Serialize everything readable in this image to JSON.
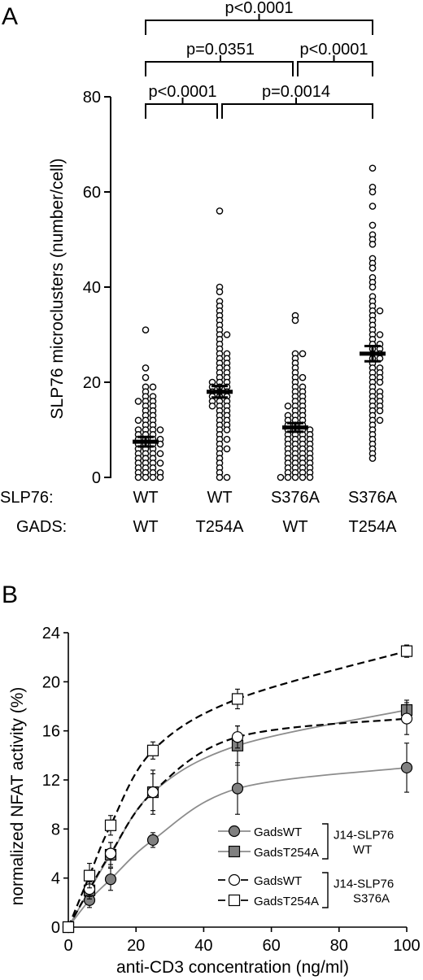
{
  "chart_data": [
    {
      "panel": "A",
      "type": "scatter",
      "ylabel": "SLP76 microclusters (number/cell)",
      "ylim": [
        0,
        80
      ],
      "yticks": [
        0,
        20,
        40,
        60,
        80
      ],
      "row_labels": [
        "SLP76:",
        "GADS:"
      ],
      "groups": [
        {
          "slp76": "WT",
          "gads": "WT",
          "mean": 7.5,
          "sem": 1.0,
          "values": [
            31,
            23,
            21,
            19,
            19,
            18,
            17,
            17,
            16,
            16,
            16,
            15,
            15,
            14,
            14,
            13,
            13,
            12,
            12,
            12,
            11,
            11,
            10,
            10,
            10,
            10,
            9,
            9,
            9,
            8,
            8,
            8,
            8,
            7,
            7,
            7,
            7,
            6,
            6,
            6,
            5,
            5,
            5,
            5,
            4,
            4,
            4,
            3,
            3,
            3,
            3,
            2,
            2,
            2,
            1,
            1,
            1,
            1,
            0,
            0,
            0,
            0
          ]
        },
        {
          "slp76": "WT",
          "gads": "T254A",
          "mean": 18,
          "sem": 1.2,
          "values": [
            56,
            40,
            39,
            37,
            36,
            35,
            34,
            33,
            32,
            31,
            30,
            30,
            29,
            28,
            27,
            26,
            26,
            25,
            25,
            24,
            24,
            23,
            23,
            22,
            22,
            21,
            21,
            20,
            20,
            20,
            19,
            19,
            19,
            18,
            18,
            18,
            17,
            17,
            17,
            16,
            16,
            16,
            15,
            15,
            15,
            14,
            14,
            13,
            13,
            12,
            12,
            11,
            11,
            10,
            10,
            9,
            8,
            8,
            7,
            6,
            6,
            5,
            4,
            3,
            2,
            1,
            0,
            0
          ]
        },
        {
          "slp76": "S376A",
          "gads": "WT",
          "mean": 10.5,
          "sem": 0.9,
          "values": [
            34,
            33,
            26,
            26,
            25,
            24,
            23,
            22,
            21,
            21,
            20,
            19,
            19,
            18,
            18,
            17,
            17,
            16,
            16,
            15,
            15,
            15,
            14,
            14,
            13,
            13,
            13,
            12,
            12,
            12,
            11,
            11,
            11,
            10,
            10,
            10,
            10,
            9,
            9,
            9,
            9,
            8,
            8,
            8,
            8,
            7,
            7,
            7,
            7,
            6,
            6,
            6,
            6,
            5,
            5,
            5,
            5,
            4,
            4,
            4,
            4,
            3,
            3,
            3,
            3,
            2,
            2,
            2,
            2,
            1,
            1,
            1,
            1,
            0,
            0,
            0,
            0,
            0
          ]
        },
        {
          "slp76": "S376A",
          "gads": "T254A",
          "mean": 26,
          "sem": 1.6,
          "values": [
            65,
            61,
            60,
            57,
            53,
            51,
            50,
            49,
            46,
            45,
            44,
            42,
            41,
            40,
            38,
            37,
            36,
            35,
            35,
            34,
            33,
            32,
            31,
            30,
            30,
            29,
            28,
            28,
            27,
            27,
            26,
            26,
            25,
            25,
            24,
            23,
            23,
            22,
            22,
            21,
            21,
            20,
            20,
            19,
            18,
            18,
            17,
            17,
            16,
            16,
            15,
            15,
            14,
            14,
            13,
            12,
            12,
            11,
            10,
            9,
            8,
            7,
            6,
            5,
            4
          ]
        }
      ],
      "comparisons": [
        {
          "a": 0,
          "b": 3,
          "label": "p<0.0001"
        },
        {
          "a": 0,
          "b": 2,
          "label": "p=0.0351"
        },
        {
          "a": 2,
          "b": 3,
          "label": "p<0.0001"
        },
        {
          "a": 0,
          "b": 1,
          "label": "p<0.0001"
        },
        {
          "a": 1,
          "b": 3,
          "label": "p=0.0014"
        }
      ]
    },
    {
      "panel": "B",
      "type": "line",
      "xlabel": "anti-CD3 concentration (ng/ml)",
      "ylabel": "normalized NFAT activity (%)",
      "xlim": [
        0,
        100
      ],
      "ylim": [
        0,
        24
      ],
      "xticks": [
        0,
        20,
        40,
        60,
        80,
        100
      ],
      "yticks": [
        0,
        4,
        8,
        12,
        16,
        20,
        24
      ],
      "x": [
        0,
        6.25,
        12.5,
        25,
        50,
        100
      ],
      "series": [
        {
          "name": "GadsWT",
          "group": 0,
          "marker": "circle",
          "fill": "#808080",
          "line": "solid",
          "line_color": "#8c8c8c",
          "values": [
            0,
            2.2,
            3.9,
            7.1,
            11.3,
            13.0
          ],
          "err": [
            0,
            0.6,
            0.9,
            0.6,
            2.1,
            2.0
          ]
        },
        {
          "name": "GadsT254A",
          "group": 0,
          "marker": "square",
          "fill": "#808080",
          "line": "solid",
          "line_color": "#8c8c8c",
          "values": [
            0,
            3.0,
            5.9,
            11.0,
            14.8,
            17.7
          ],
          "err": [
            0,
            0.7,
            1.0,
            1.5,
            1.6,
            0.8
          ]
        },
        {
          "name": "GadsWT",
          "group": 1,
          "marker": "circle",
          "fill": "#ffffff",
          "line": "dashed",
          "line_color": "#000000",
          "values": [
            0,
            3.1,
            6.0,
            11.0,
            15.5,
            17.0
          ],
          "err": [
            0,
            0.6,
            0.9,
            1.8,
            0.9,
            1.3
          ]
        },
        {
          "name": "GadsT254A",
          "group": 1,
          "marker": "square",
          "fill": "#ffffff",
          "line": "dashed",
          "line_color": "#000000",
          "values": [
            0,
            4.2,
            8.3,
            14.4,
            18.6,
            22.5
          ],
          "err": [
            0,
            1.0,
            0.8,
            0.7,
            0.8,
            0.5
          ]
        }
      ],
      "legend": {
        "placement": "bottom-right",
        "groups": [
          {
            "label_lines": [
              "J14-SLP76",
              "WT"
            ]
          },
          {
            "label_lines": [
              "J14-SLP76",
              "S376A"
            ]
          }
        ]
      }
    }
  ]
}
